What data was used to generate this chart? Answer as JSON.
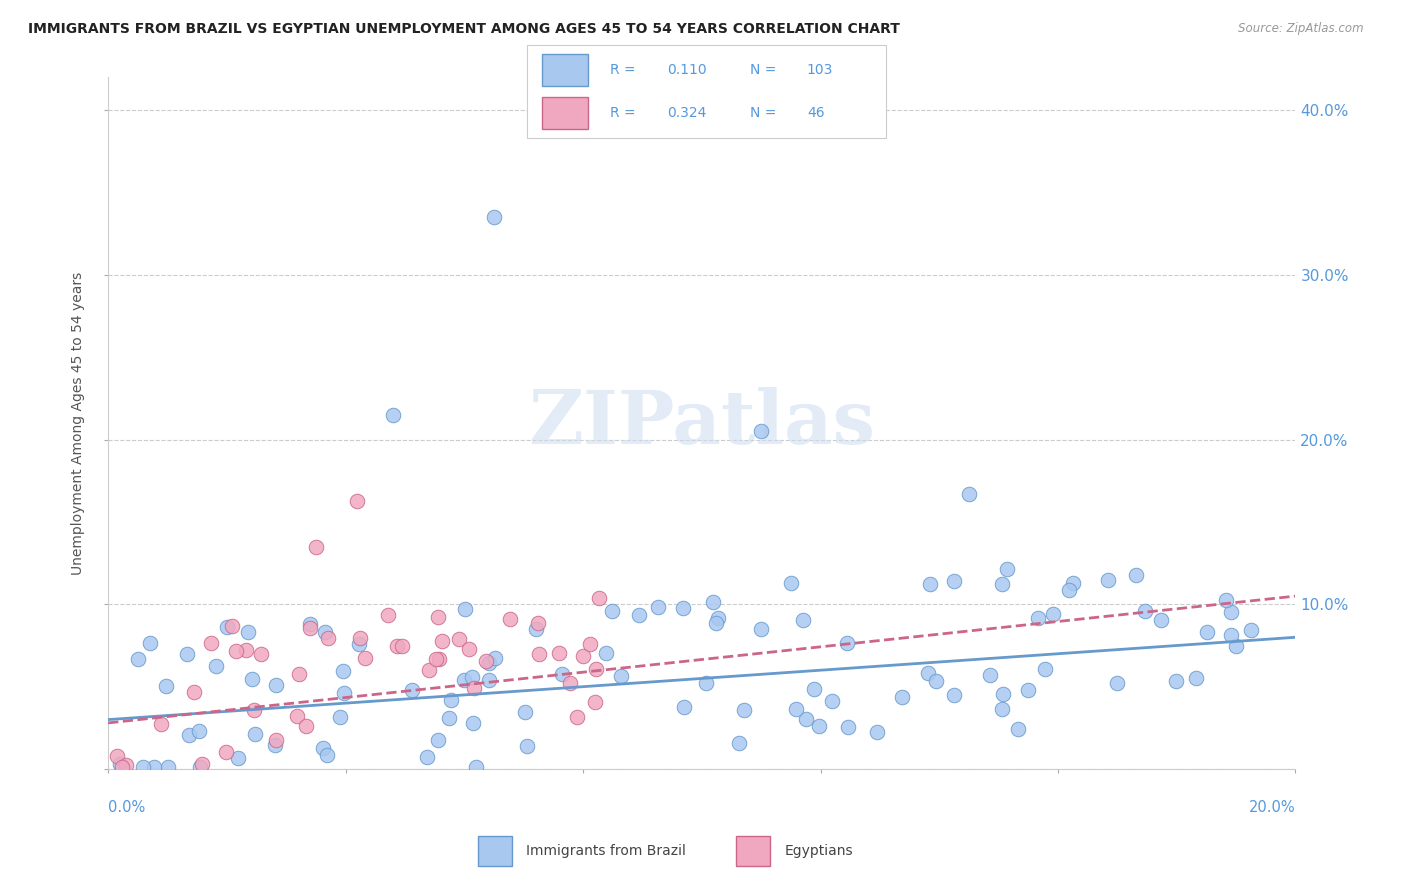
{
  "title": "IMMIGRANTS FROM BRAZIL VS EGYPTIAN UNEMPLOYMENT AMONG AGES 45 TO 54 YEARS CORRELATION CHART",
  "source": "Source: ZipAtlas.com",
  "ylabel": "Unemployment Among Ages 45 to 54 years",
  "xlim": [
    0.0,
    0.2
  ],
  "ylim": [
    0.0,
    0.42
  ],
  "yticks": [
    0.0,
    0.1,
    0.2,
    0.3,
    0.4
  ],
  "ytick_labels": [
    "",
    "10.0%",
    "20.0%",
    "30.0%",
    "40.0%"
  ],
  "legend_r_brazil": "0.110",
  "legend_n_brazil": "103",
  "legend_r_egypt": "0.324",
  "legend_n_egypt": "46",
  "color_brazil": "#a8c8f0",
  "color_egypt": "#f0a8c0",
  "color_brazil_line": "#6699cc",
  "color_egypt_line": "#cc6688",
  "color_text_blue": "#5599dd",
  "watermark": "ZIPatlas",
  "brazil_line_x": [
    0.0,
    0.2
  ],
  "brazil_line_y": [
    0.03,
    0.08
  ],
  "egypt_line_x": [
    0.0,
    0.2
  ],
  "egypt_line_y": [
    0.028,
    0.105
  ]
}
